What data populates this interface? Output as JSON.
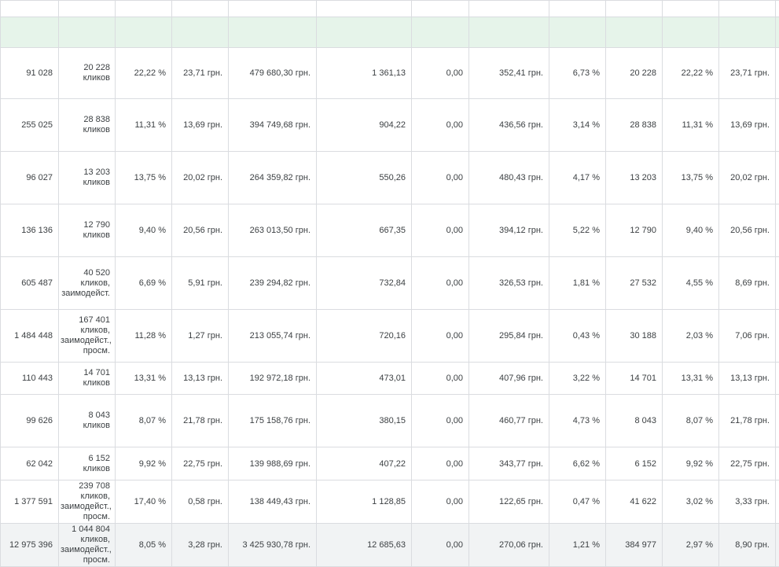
{
  "table": {
    "rows": [
      {
        "impr": "91 028",
        "conv": [
          "20 228",
          "кликов"
        ],
        "ctr": "22,22 %",
        "avg_cpc": "23,71 грн.",
        "cost": "479 680,30 грн.",
        "clicks": "1 361,13",
        "zero": "0,00",
        "cpa": "352,41 грн.",
        "rate": "6,73 %",
        "interactions": "20 228",
        "int_rate": "22,22 %",
        "avg_cost": "23,71 грн."
      },
      {
        "impr": "255 025",
        "conv": [
          "28 838",
          "кликов"
        ],
        "ctr": "11,31 %",
        "avg_cpc": "13,69 грн.",
        "cost": "394 749,68 грн.",
        "clicks": "904,22",
        "zero": "0,00",
        "cpa": "436,56 грн.",
        "rate": "3,14 %",
        "interactions": "28 838",
        "int_rate": "11,31 %",
        "avg_cost": "13,69 грн."
      },
      {
        "impr": "96 027",
        "conv": [
          "13 203",
          "кликов"
        ],
        "ctr": "13,75 %",
        "avg_cpc": "20,02 грн.",
        "cost": "264 359,82 грн.",
        "clicks": "550,26",
        "zero": "0,00",
        "cpa": "480,43 грн.",
        "rate": "4,17 %",
        "interactions": "13 203",
        "int_rate": "13,75 %",
        "avg_cost": "20,02 грн."
      },
      {
        "impr": "136 136",
        "conv": [
          "12 790",
          "кликов"
        ],
        "ctr": "9,40 %",
        "avg_cpc": "20,56 грн.",
        "cost": "263 013,50 грн.",
        "clicks": "667,35",
        "zero": "0,00",
        "cpa": "394,12 грн.",
        "rate": "5,22 %",
        "interactions": "12 790",
        "int_rate": "9,40 %",
        "avg_cost": "20,56 грн."
      },
      {
        "impr": "605 487",
        "conv": [
          "40 520",
          "кликов,",
          "заимодейст."
        ],
        "ctr": "6,69 %",
        "avg_cpc": "5,91 грн.",
        "cost": "239 294,82 грн.",
        "clicks": "732,84",
        "zero": "0,00",
        "cpa": "326,53 грн.",
        "rate": "1,81 %",
        "interactions": "27 532",
        "int_rate": "4,55 %",
        "avg_cost": "8,69 грн."
      },
      {
        "impr": "1 484 448",
        "conv": [
          "167 401",
          "кликов,",
          "заимодейст.,",
          "просм."
        ],
        "ctr": "11,28 %",
        "avg_cpc": "1,27 грн.",
        "cost": "213 055,74 грн.",
        "clicks": "720,16",
        "zero": "0,00",
        "cpa": "295,84 грн.",
        "rate": "0,43 %",
        "interactions": "30 188",
        "int_rate": "2,03 %",
        "avg_cost": "7,06 грн."
      },
      {
        "impr": "110 443",
        "conv": [
          "14 701",
          "кликов"
        ],
        "ctr": "13,31 %",
        "avg_cpc": "13,13 грн.",
        "cost": "192 972,18 грн.",
        "clicks": "473,01",
        "zero": "0,00",
        "cpa": "407,96 грн.",
        "rate": "3,22 %",
        "interactions": "14 701",
        "int_rate": "13,31 %",
        "avg_cost": "13,13 грн."
      },
      {
        "impr": "99 626",
        "conv": [
          "8 043",
          "кликов"
        ],
        "ctr": "8,07 %",
        "avg_cpc": "21,78 грн.",
        "cost": "175 158,76 грн.",
        "clicks": "380,15",
        "zero": "0,00",
        "cpa": "460,77 грн.",
        "rate": "4,73 %",
        "interactions": "8 043",
        "int_rate": "8,07 %",
        "avg_cost": "21,78 грн."
      },
      {
        "impr": "62 042",
        "conv": [
          "6 152",
          "кликов"
        ],
        "ctr": "9,92 %",
        "avg_cpc": "22,75 грн.",
        "cost": "139 988,69 грн.",
        "clicks": "407,22",
        "zero": "0,00",
        "cpa": "343,77 грн.",
        "rate": "6,62 %",
        "interactions": "6 152",
        "int_rate": "9,92 %",
        "avg_cost": "22,75 грн."
      },
      {
        "impr": "1 377 591",
        "conv": [
          "239 708",
          "кликов,",
          "заимодейст.,",
          "просм."
        ],
        "ctr": "17,40 %",
        "avg_cpc": "0,58 грн.",
        "cost": "138 449,43 грн.",
        "clicks": "1 128,85",
        "zero": "0,00",
        "cpa": "122,65 грн.",
        "rate": "0,47 %",
        "interactions": "41 622",
        "int_rate": "3,02 %",
        "avg_cost": "3,33 грн."
      }
    ],
    "total": {
      "impr": "12 975 396",
      "conv": [
        "1 044 804",
        "кликов,",
        "заимодейст.,",
        "просм."
      ],
      "ctr": "8,05 %",
      "avg_cpc": "3,28 грн.",
      "cost": "3 425 930,78 грн.",
      "clicks": "12 685,63",
      "zero": "0,00",
      "cpa": "270,06 грн.",
      "rate": "1,21 %",
      "interactions": "384 977",
      "int_rate": "2,97 %",
      "avg_cost": "8,90 грн."
    }
  }
}
